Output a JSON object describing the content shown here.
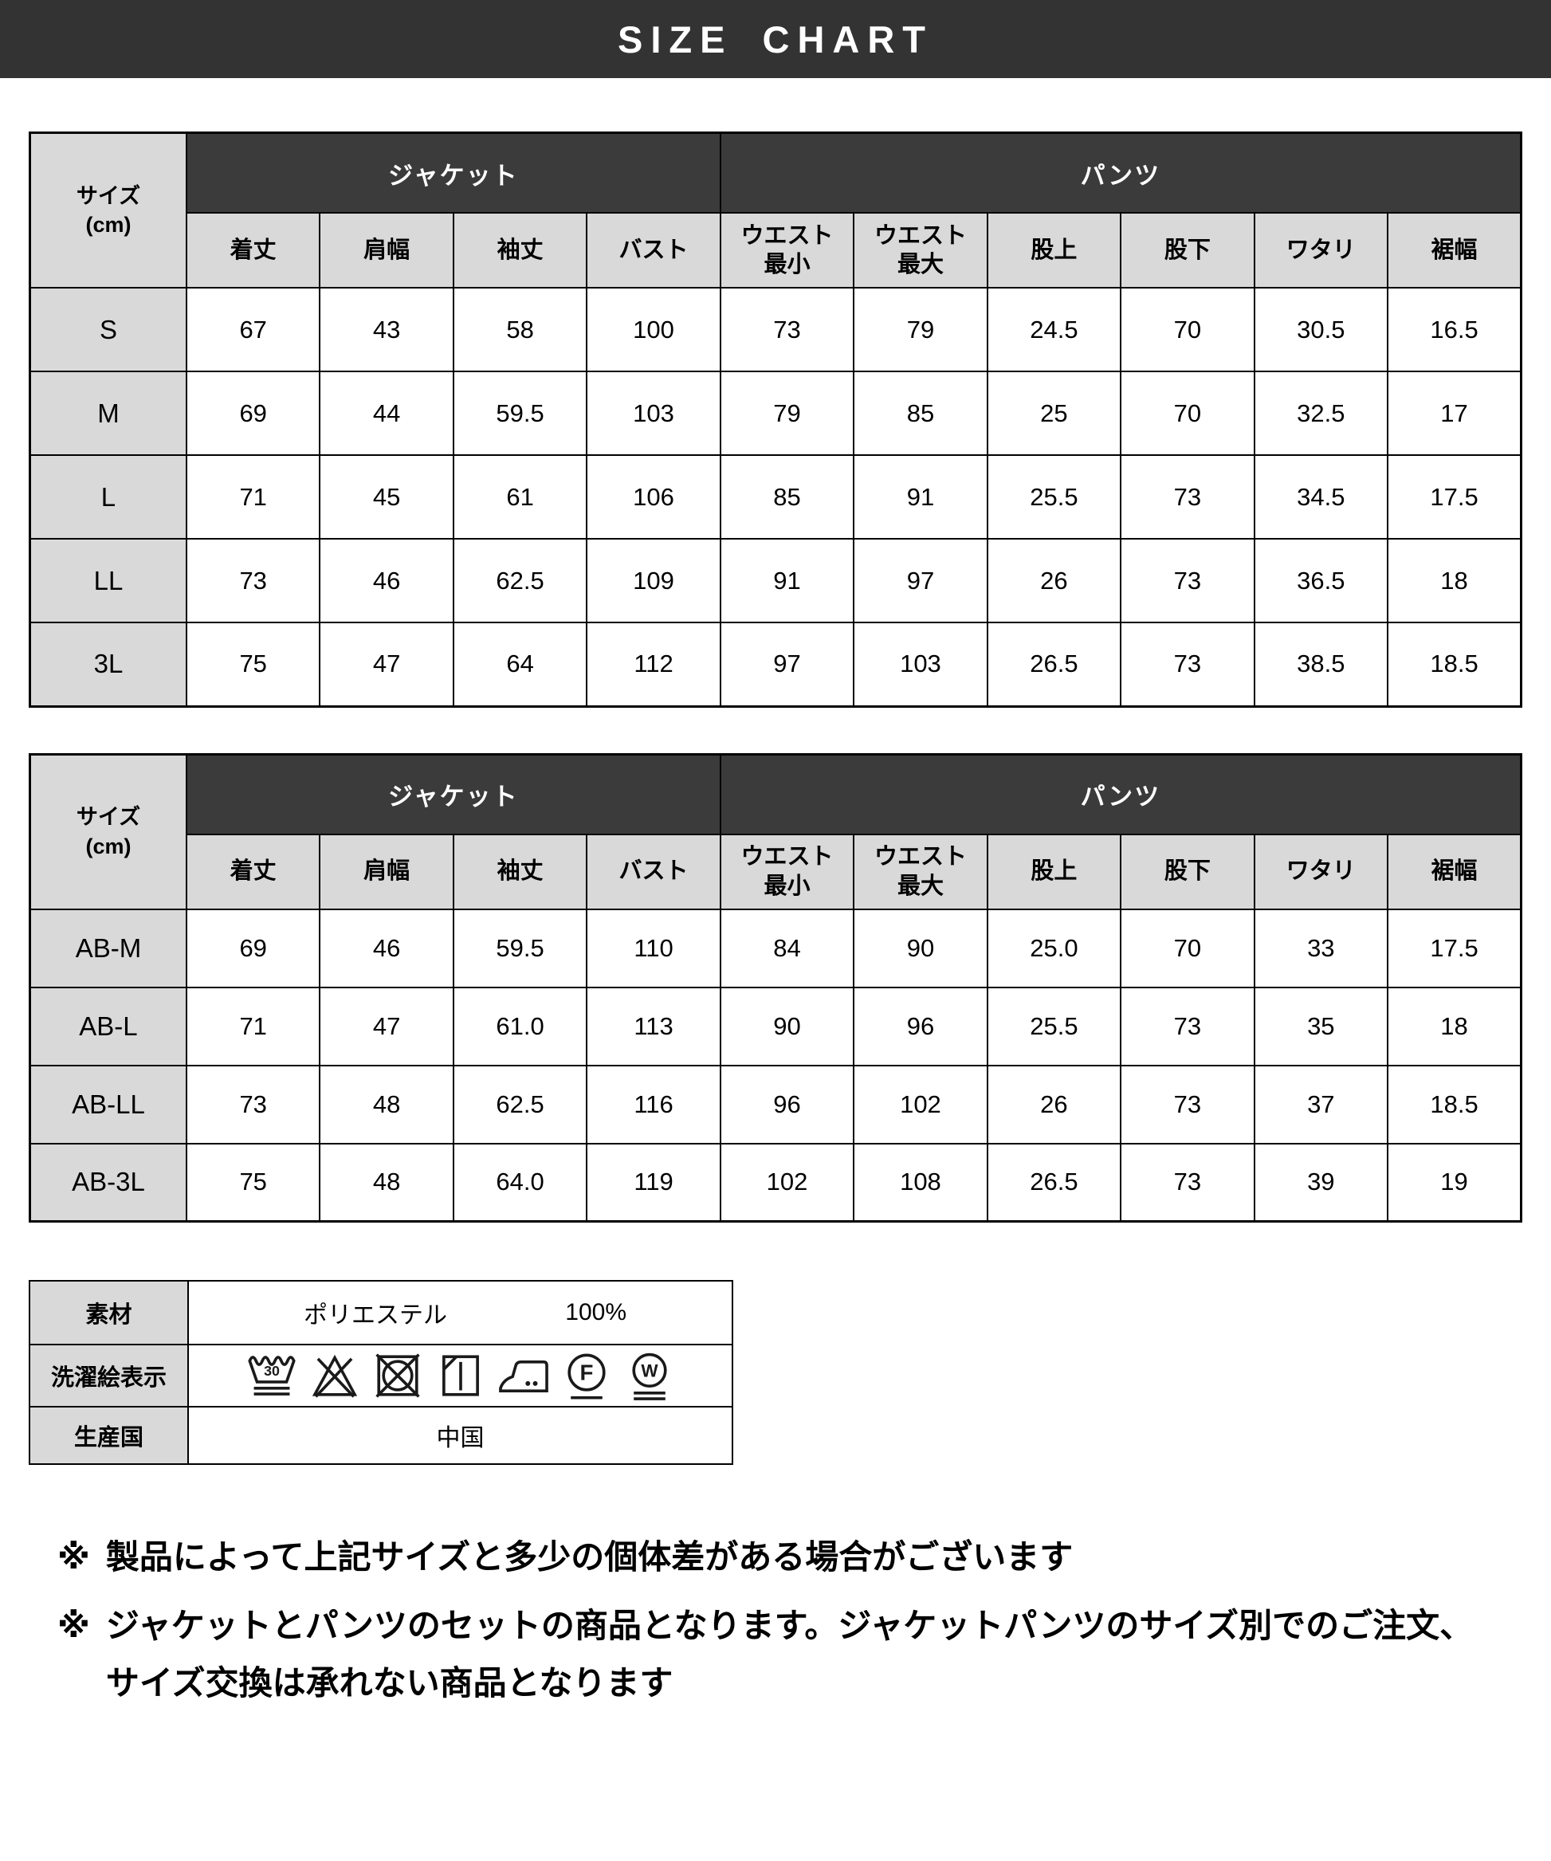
{
  "title": "SIZE CHART",
  "colors": {
    "title_bar_bg": "#333333",
    "group_header_bg": "#3b3b3b",
    "label_cell_bg": "#d9d9d9",
    "border": "#000000"
  },
  "headers": {
    "size_label": "サイズ",
    "size_unit": "(cm)",
    "jacket_group": "ジャケット",
    "pants_group": "パンツ",
    "columns": [
      "着丈",
      "肩幅",
      "袖丈",
      "バスト",
      "ウエスト\n最小",
      "ウエスト\n最大",
      "股上",
      "股下",
      "ワタリ",
      "裾幅"
    ]
  },
  "size_table_regular": {
    "rows": [
      {
        "size": "S",
        "values": [
          "67",
          "43",
          "58",
          "100",
          "73",
          "79",
          "24.5",
          "70",
          "30.5",
          "16.5"
        ]
      },
      {
        "size": "M",
        "values": [
          "69",
          "44",
          "59.5",
          "103",
          "79",
          "85",
          "25",
          "70",
          "32.5",
          "17"
        ]
      },
      {
        "size": "L",
        "values": [
          "71",
          "45",
          "61",
          "106",
          "85",
          "91",
          "25.5",
          "73",
          "34.5",
          "17.5"
        ]
      },
      {
        "size": "LL",
        "values": [
          "73",
          "46",
          "62.5",
          "109",
          "91",
          "97",
          "26",
          "73",
          "36.5",
          "18"
        ]
      },
      {
        "size": "3L",
        "values": [
          "75",
          "47",
          "64",
          "112",
          "97",
          "103",
          "26.5",
          "73",
          "38.5",
          "18.5"
        ]
      }
    ]
  },
  "size_table_ab": {
    "rows": [
      {
        "size": "AB-M",
        "values": [
          "69",
          "46",
          "59.5",
          "110",
          "84",
          "90",
          "25.0",
          "70",
          "33",
          "17.5"
        ]
      },
      {
        "size": "AB-L",
        "values": [
          "71",
          "47",
          "61.0",
          "113",
          "90",
          "96",
          "25.5",
          "73",
          "35",
          "18"
        ]
      },
      {
        "size": "AB-LL",
        "values": [
          "73",
          "48",
          "62.5",
          "116",
          "96",
          "102",
          "26",
          "73",
          "37",
          "18.5"
        ]
      },
      {
        "size": "AB-3L",
        "values": [
          "75",
          "48",
          "64.0",
          "119",
          "102",
          "108",
          "26.5",
          "73",
          "39",
          "19"
        ]
      }
    ]
  },
  "care": {
    "material_label": "素材",
    "material_name": "ポリエステル",
    "material_percentage": "100%",
    "symbols_label": "洗濯絵表示",
    "wash_temperature": "30",
    "symbols": [
      "wash-30-very-gentle",
      "do-not-bleach",
      "do-not-tumble-dry",
      "line-dry-in-shade",
      "iron-medium",
      "dry-clean-petroleum-mild",
      "wet-clean-very-mild"
    ],
    "origin_label": "生産国",
    "origin_value": "中国"
  },
  "notes": [
    {
      "marker": "※",
      "text": "製品によって上記サイズと多少の個体差がある場合がございます"
    },
    {
      "marker": "※",
      "text": "ジャケットとパンツのセットの商品となります。ジャケットパンツのサイズ別でのご注文、サイズ交換は承れない商品となります"
    }
  ]
}
